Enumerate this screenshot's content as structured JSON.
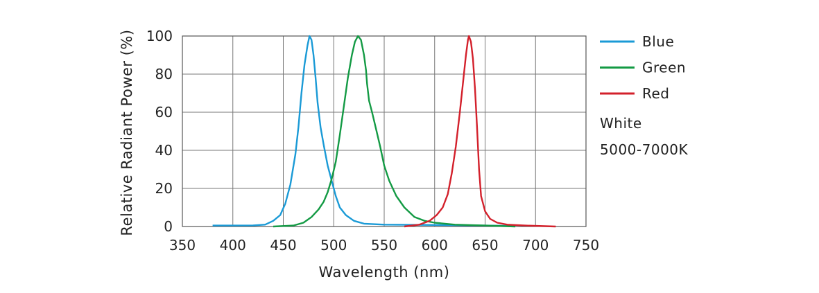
{
  "chart_data": {
    "type": "line",
    "xlabel": "Wavelength (nm)",
    "ylabel": "Relative Radiant Power (%)",
    "xlim": [
      350,
      750
    ],
    "ylim": [
      0,
      100
    ],
    "xticks": [
      350,
      400,
      450,
      500,
      550,
      600,
      650,
      700,
      750
    ],
    "yticks": [
      0,
      20,
      40,
      60,
      80,
      100
    ],
    "grid": true,
    "legend_position": "right",
    "series": [
      {
        "name": "Blue",
        "color": "#1a9ad6",
        "points": [
          [
            380,
            0.5
          ],
          [
            400,
            0.5
          ],
          [
            420,
            0.6
          ],
          [
            432,
            1
          ],
          [
            440,
            3
          ],
          [
            447,
            6
          ],
          [
            452,
            12
          ],
          [
            457,
            22
          ],
          [
            462,
            38
          ],
          [
            465,
            52
          ],
          [
            468,
            70
          ],
          [
            471,
            85
          ],
          [
            474,
            95
          ],
          [
            476,
            100
          ],
          [
            478,
            98
          ],
          [
            480,
            90
          ],
          [
            482,
            78
          ],
          [
            484,
            65
          ],
          [
            487,
            52
          ],
          [
            490,
            43
          ],
          [
            494,
            32
          ],
          [
            498,
            24
          ],
          [
            502,
            16
          ],
          [
            506,
            10
          ],
          [
            512,
            6
          ],
          [
            520,
            3
          ],
          [
            530,
            1.5
          ],
          [
            550,
            1
          ],
          [
            600,
            0.8
          ],
          [
            650,
            0.5
          ],
          [
            680,
            0.3
          ]
        ]
      },
      {
        "name": "Green",
        "color": "#139a44",
        "points": [
          [
            440,
            0
          ],
          [
            460,
            0.5
          ],
          [
            470,
            2
          ],
          [
            478,
            5
          ],
          [
            485,
            9
          ],
          [
            490,
            13
          ],
          [
            494,
            18
          ],
          [
            498,
            25
          ],
          [
            502,
            34
          ],
          [
            506,
            48
          ],
          [
            510,
            63
          ],
          [
            514,
            78
          ],
          [
            518,
            90
          ],
          [
            521,
            97
          ],
          [
            524,
            100
          ],
          [
            527,
            98
          ],
          [
            530,
            90
          ],
          [
            532,
            82
          ],
          [
            533,
            75
          ],
          [
            535,
            66
          ],
          [
            538,
            60
          ],
          [
            542,
            51
          ],
          [
            546,
            42
          ],
          [
            550,
            32
          ],
          [
            555,
            24
          ],
          [
            562,
            16
          ],
          [
            570,
            10
          ],
          [
            580,
            5
          ],
          [
            590,
            3
          ],
          [
            600,
            2
          ],
          [
            620,
            1
          ],
          [
            650,
            0.5
          ],
          [
            680,
            0
          ]
        ]
      },
      {
        "name": "Red",
        "color": "#d3202b",
        "points": [
          [
            570,
            0
          ],
          [
            585,
            1
          ],
          [
            595,
            3
          ],
          [
            602,
            6
          ],
          [
            608,
            10
          ],
          [
            613,
            17
          ],
          [
            617,
            28
          ],
          [
            621,
            42
          ],
          [
            625,
            60
          ],
          [
            628,
            75
          ],
          [
            631,
            90
          ],
          [
            633,
            98
          ],
          [
            634,
            100
          ],
          [
            636,
            97
          ],
          [
            638,
            88
          ],
          [
            640,
            72
          ],
          [
            642,
            52
          ],
          [
            644,
            30
          ],
          [
            646,
            16
          ],
          [
            650,
            8
          ],
          [
            655,
            4
          ],
          [
            662,
            2
          ],
          [
            672,
            1
          ],
          [
            690,
            0.5
          ],
          [
            720,
            0
          ]
        ]
      }
    ],
    "annotation": [
      "White",
      "5000-7000K"
    ]
  }
}
